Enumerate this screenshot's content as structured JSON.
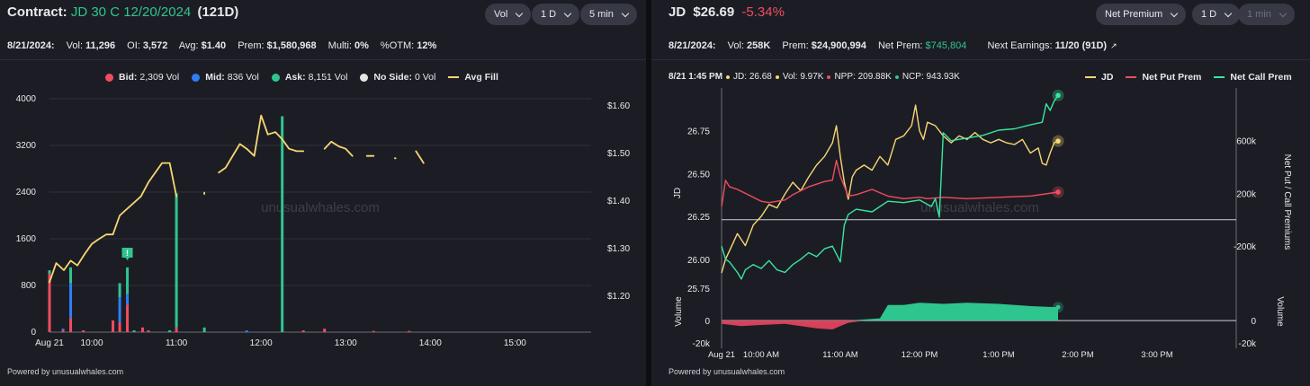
{
  "colors": {
    "bid": "#ef4d5f",
    "mid": "#2e7ef7",
    "ask": "#2fc58f",
    "noside": "#e6e6e6",
    "avgfill": "#f7d774",
    "jd": "#f7d774",
    "netput": "#ef4d5f",
    "netcall": "#37e6a0"
  },
  "left": {
    "contract_label": "Contract:",
    "contract_name": "JD 30 C 12/20/2024",
    "dte": "(121D)",
    "dropdowns": [
      {
        "label": "Vol"
      },
      {
        "label": "1 D"
      },
      {
        "label": "5 min"
      }
    ],
    "stats": [
      {
        "label": "8/21/2024:",
        "value": ""
      },
      {
        "label": "Vol:",
        "value": "11,296"
      },
      {
        "label": "OI:",
        "value": "3,572"
      },
      {
        "label": "Avg:",
        "value": "$1.40"
      },
      {
        "label": "Prem:",
        "value": "$1,580,968"
      },
      {
        "label": "Multi:",
        "value": "0%"
      },
      {
        "label": "%OTM:",
        "value": "12%"
      }
    ],
    "legend": [
      {
        "name": "Bid:",
        "value": "2,309 Vol",
        "icon": "dot"
      },
      {
        "name": "Mid:",
        "value": "836 Vol",
        "icon": "dot"
      },
      {
        "name": "Ask:",
        "value": "8,151 Vol",
        "icon": "dot"
      },
      {
        "name": "No Side:",
        "value": "0 Vol",
        "icon": "dot"
      },
      {
        "name": "Avg Fill",
        "value": "",
        "icon": "line"
      }
    ],
    "watermark": "unusualwhales.com",
    "footer": "Powered by unusualwhales.com",
    "badge": "!"
  },
  "right": {
    "ticker": "JD",
    "price": "$26.69",
    "change": "-5.34%",
    "dropdowns": [
      {
        "label": "Net Premium",
        "disabled": false
      },
      {
        "label": "1 D",
        "disabled": false
      },
      {
        "label": "1 min",
        "disabled": true
      }
    ],
    "stats": [
      {
        "label": "8/21/2024:",
        "value": ""
      },
      {
        "label": "Vol:",
        "value": "258K"
      },
      {
        "label": "Prem:",
        "value": "$24,900,994"
      },
      {
        "label": "Net Prem:",
        "value": "$745,804"
      },
      {
        "label": "Next Earnings:",
        "value": "11/20 (91D)"
      }
    ],
    "hover_info": {
      "time": "8/21 1:45 PM",
      "jd": "JD: 26.68",
      "vol": "Vol: 9.97K",
      "npp": "NPP: 209.88K",
      "ncp": "NCP: 943.93K"
    },
    "legend": [
      {
        "name": "JD"
      },
      {
        "name": "Net Put Prem"
      },
      {
        "name": "Net Call Prem"
      }
    ],
    "watermark": "unusualwhales.com",
    "footer": "Powered by unusualwhales.com"
  },
  "chart_data": [
    {
      "type": "bar",
      "title": "",
      "x_ticks": [
        "Aug 21",
        "10:00",
        "11:00",
        "12:00",
        "13:00",
        "14:00",
        "15:00"
      ],
      "x_tick_times": [
        9.5,
        10.0,
        11.0,
        12.0,
        13.0,
        14.0,
        15.0
      ],
      "xlim": [
        9.5,
        15.9
      ],
      "ylim": [
        0,
        4000
      ],
      "y_ticks": [
        0,
        800,
        1600,
        2400,
        3200,
        4000
      ],
      "y2lim": [
        1.125,
        1.615
      ],
      "y2_ticks": [
        "$1.20",
        "$1.30",
        "$1.40",
        "$1.50",
        "$1.60"
      ],
      "y2_tick_values": [
        1.2,
        1.3,
        1.4,
        1.5,
        1.6
      ],
      "bars": [
        {
          "t": 9.5,
          "bid": 1000,
          "mid": 0,
          "ask": 60
        },
        {
          "t": 9.66,
          "bid": 30,
          "mid": 30,
          "ask": 0
        },
        {
          "t": 9.75,
          "bid": 240,
          "mid": 600,
          "ask": 270
        },
        {
          "t": 9.9,
          "bid": 30,
          "mid": 0,
          "ask": 0
        },
        {
          "t": 10.25,
          "bid": 200,
          "mid": 0,
          "ask": 0
        },
        {
          "t": 10.33,
          "bid": 170,
          "mid": 430,
          "ask": 240
        },
        {
          "t": 10.42,
          "bid": 470,
          "mid": 180,
          "ask": 460
        },
        {
          "t": 10.5,
          "bid": 0,
          "mid": 0,
          "ask": 30
        },
        {
          "t": 10.6,
          "bid": 80,
          "mid": 0,
          "ask": 0
        },
        {
          "t": 10.67,
          "bid": 30,
          "mid": 0,
          "ask": 0
        },
        {
          "t": 10.92,
          "bid": 0,
          "mid": 0,
          "ask": 30
        },
        {
          "t": 11.0,
          "bid": 80,
          "mid": 0,
          "ask": 2300
        },
        {
          "t": 11.33,
          "bid": 0,
          "mid": 0,
          "ask": 80
        },
        {
          "t": 11.83,
          "bid": 0,
          "mid": 30,
          "ask": 0
        },
        {
          "t": 12.25,
          "bid": 0,
          "mid": 0,
          "ask": 3700
        },
        {
          "t": 12.5,
          "bid": 30,
          "mid": 0,
          "ask": 0
        },
        {
          "t": 12.75,
          "bid": 60,
          "mid": 0,
          "ask": 0
        },
        {
          "t": 13.33,
          "bid": 20,
          "mid": 0,
          "ask": 0
        },
        {
          "t": 13.75,
          "bid": 20,
          "mid": 0,
          "ask": 0
        }
      ],
      "avg_fill": [
        [
          [
            9.5,
            1.23
          ],
          [
            9.58,
            1.27
          ],
          [
            9.67,
            1.255
          ],
          [
            9.75,
            1.275
          ],
          [
            9.83,
            1.265
          ],
          [
            9.92,
            1.29
          ],
          [
            10.0,
            1.31
          ],
          [
            10.08,
            1.32
          ],
          [
            10.17,
            1.33
          ],
          [
            10.25,
            1.33
          ],
          [
            10.33,
            1.37
          ],
          [
            10.58,
            1.41
          ],
          [
            10.67,
            1.44
          ],
          [
            10.83,
            1.48
          ],
          [
            10.92,
            1.48
          ],
          [
            11.0,
            1.41
          ]
        ],
        [
          [
            11.33,
            1.415
          ],
          [
            11.33,
            1.418
          ]
        ],
        [
          [
            11.5,
            1.46
          ],
          [
            11.58,
            1.47
          ],
          [
            11.75,
            1.52
          ],
          [
            11.83,
            1.51
          ],
          [
            11.92,
            1.495
          ],
          [
            12.0,
            1.58
          ],
          [
            12.08,
            1.54
          ],
          [
            12.17,
            1.545
          ],
          [
            12.25,
            1.53
          ],
          [
            12.33,
            1.51
          ],
          [
            12.42,
            1.505
          ],
          [
            12.5,
            1.505
          ]
        ],
        [
          [
            12.75,
            1.51
          ],
          [
            12.83,
            1.525
          ],
          [
            12.92,
            1.515
          ],
          [
            13.0,
            1.51
          ],
          [
            13.08,
            1.495
          ]
        ],
        [
          [
            13.25,
            1.495
          ],
          [
            13.33,
            1.495
          ]
        ],
        [
          [
            13.58,
            1.49
          ],
          [
            13.59,
            1.49
          ]
        ],
        [
          [
            13.83,
            1.505
          ],
          [
            13.92,
            1.48
          ]
        ]
      ]
    },
    {
      "type": "line",
      "x_ticks": [
        "Aug 21",
        "10:00 AM",
        "11:00 AM",
        "12:00 PM",
        "1:00 PM",
        "2:00 PM",
        "3:00 PM"
      ],
      "x_tick_times": [
        9.5,
        10.0,
        11.0,
        12.0,
        13.0,
        14.0,
        15.0
      ],
      "xlim": [
        9.5,
        16.0
      ],
      "ylabel": "JD",
      "y2label": "Net Put / Call Premiums",
      "ylim": [
        25.8,
        27.0
      ],
      "y_ticks": [
        26.0,
        26.25,
        26.5,
        26.75
      ],
      "y_tick_labels": [
        "26.00",
        "26.25",
        "26.50",
        "26.75"
      ],
      "y2lim": [
        -560000,
        1000000
      ],
      "y2_ticks": [
        -200000,
        200000,
        600000
      ],
      "y2_tick_labels": [
        "-200k",
        "200k",
        "600k"
      ],
      "series": [
        {
          "name": "JD",
          "points": [
            [
              9.5,
              25.92
            ],
            [
              9.55,
              26.0
            ],
            [
              9.6,
              26.05
            ],
            [
              9.7,
              26.15
            ],
            [
              9.8,
              26.08
            ],
            [
              9.9,
              26.2
            ],
            [
              10.0,
              26.25
            ],
            [
              10.1,
              26.32
            ],
            [
              10.2,
              26.3
            ],
            [
              10.3,
              26.38
            ],
            [
              10.4,
              26.45
            ],
            [
              10.5,
              26.4
            ],
            [
              10.6,
              26.48
            ],
            [
              10.7,
              26.55
            ],
            [
              10.8,
              26.6
            ],
            [
              10.9,
              26.68
            ],
            [
              10.95,
              26.78
            ],
            [
              11.0,
              26.6
            ],
            [
              11.05,
              26.45
            ],
            [
              11.1,
              26.35
            ],
            [
              11.15,
              26.48
            ],
            [
              11.2,
              26.52
            ],
            [
              11.3,
              26.55
            ],
            [
              11.4,
              26.52
            ],
            [
              11.5,
              26.6
            ],
            [
              11.6,
              26.55
            ],
            [
              11.7,
              26.7
            ],
            [
              11.8,
              26.72
            ],
            [
              11.9,
              26.78
            ],
            [
              11.95,
              26.9
            ],
            [
              12.0,
              26.75
            ],
            [
              12.05,
              26.7
            ],
            [
              12.1,
              26.8
            ],
            [
              12.2,
              26.78
            ],
            [
              12.3,
              26.72
            ],
            [
              12.4,
              26.68
            ],
            [
              12.5,
              26.72
            ],
            [
              12.6,
              26.7
            ],
            [
              12.7,
              26.74
            ],
            [
              12.8,
              26.7
            ],
            [
              12.9,
              26.68
            ],
            [
              13.0,
              26.7
            ],
            [
              13.1,
              26.68
            ],
            [
              13.2,
              26.67
            ],
            [
              13.3,
              26.7
            ],
            [
              13.4,
              26.62
            ],
            [
              13.5,
              26.65
            ],
            [
              13.55,
              26.56
            ],
            [
              13.6,
              26.55
            ],
            [
              13.65,
              26.62
            ],
            [
              13.7,
              26.68
            ],
            [
              13.75,
              26.69
            ]
          ]
        },
        {
          "name": "Net Put Prem",
          "points": [
            [
              9.5,
              100000
            ],
            [
              9.55,
              300000
            ],
            [
              9.6,
              250000
            ],
            [
              9.7,
              230000
            ],
            [
              9.8,
              200000
            ],
            [
              9.9,
              170000
            ],
            [
              10.0,
              140000
            ],
            [
              10.1,
              130000
            ],
            [
              10.2,
              140000
            ],
            [
              10.3,
              150000
            ],
            [
              10.4,
              190000
            ],
            [
              10.5,
              220000
            ],
            [
              10.6,
              250000
            ],
            [
              10.7,
              270000
            ],
            [
              10.8,
              290000
            ],
            [
              10.9,
              300000
            ],
            [
              10.95,
              450000
            ],
            [
              11.0,
              330000
            ],
            [
              11.1,
              180000
            ],
            [
              11.2,
              190000
            ],
            [
              11.4,
              230000
            ],
            [
              11.6,
              180000
            ],
            [
              11.8,
              160000
            ],
            [
              12.0,
              170000
            ],
            [
              12.1,
              160000
            ],
            [
              12.3,
              170000
            ],
            [
              12.6,
              160000
            ],
            [
              13.0,
              170000
            ],
            [
              13.4,
              180000
            ],
            [
              13.75,
              210000
            ]
          ]
        },
        {
          "name": "Net Call Prem",
          "points": [
            [
              9.5,
              -200000
            ],
            [
              9.55,
              -300000
            ],
            [
              9.6,
              -320000
            ],
            [
              9.7,
              -400000
            ],
            [
              9.75,
              -450000
            ],
            [
              9.8,
              -380000
            ],
            [
              9.9,
              -340000
            ],
            [
              10.0,
              -370000
            ],
            [
              10.1,
              -310000
            ],
            [
              10.2,
              -380000
            ],
            [
              10.3,
              -400000
            ],
            [
              10.4,
              -340000
            ],
            [
              10.5,
              -300000
            ],
            [
              10.6,
              -250000
            ],
            [
              10.7,
              -280000
            ],
            [
              10.8,
              -220000
            ],
            [
              10.9,
              -200000
            ],
            [
              11.0,
              -320000
            ],
            [
              11.05,
              -40000
            ],
            [
              11.1,
              40000
            ],
            [
              11.2,
              80000
            ],
            [
              11.4,
              60000
            ],
            [
              11.6,
              140000
            ],
            [
              11.8,
              130000
            ],
            [
              12.0,
              150000
            ],
            [
              12.15,
              100000
            ],
            [
              12.2,
              160000
            ],
            [
              12.25,
              20000
            ],
            [
              12.3,
              660000
            ],
            [
              12.4,
              600000
            ],
            [
              12.6,
              620000
            ],
            [
              12.8,
              640000
            ],
            [
              13.0,
              680000
            ],
            [
              13.2,
              690000
            ],
            [
              13.4,
              720000
            ],
            [
              13.55,
              740000
            ],
            [
              13.6,
              880000
            ],
            [
              13.65,
              830000
            ],
            [
              13.7,
              900000
            ],
            [
              13.75,
              943930
            ]
          ]
        }
      ],
      "volume": {
        "ylabel": "Volume",
        "ylim": [
          -25000,
          30000
        ],
        "y_ticks": [
          0,
          -20000
        ],
        "y_tick_labels": [
          "0",
          "-20k"
        ],
        "points": [
          [
            9.5,
            -3000
          ],
          [
            9.75,
            -5000
          ],
          [
            10.0,
            -4000
          ],
          [
            10.3,
            -3000
          ],
          [
            10.5,
            -5000
          ],
          [
            10.7,
            -7000
          ],
          [
            10.9,
            -8000
          ],
          [
            11.0,
            -5000
          ],
          [
            11.1,
            -2000
          ],
          [
            11.3,
            1000
          ],
          [
            11.5,
            2000
          ],
          [
            11.6,
            14000
          ],
          [
            11.8,
            14000
          ],
          [
            12.0,
            16000
          ],
          [
            12.3,
            15000
          ],
          [
            12.6,
            16000
          ],
          [
            13.0,
            15000
          ],
          [
            13.4,
            13000
          ],
          [
            13.75,
            12000
          ]
        ]
      }
    }
  ]
}
